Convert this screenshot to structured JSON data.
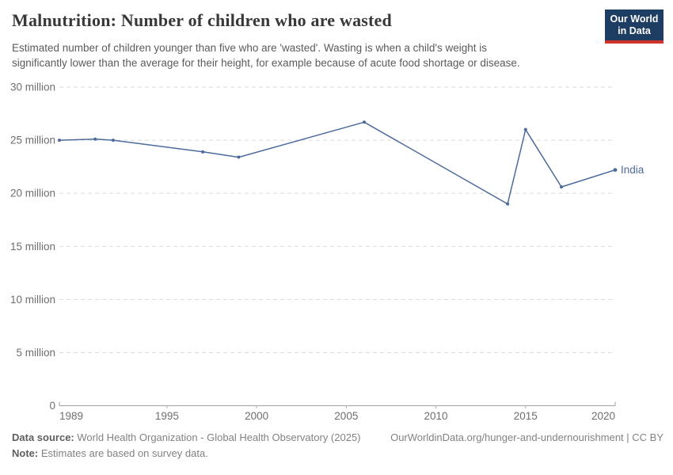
{
  "header": {
    "title": "Malnutrition: Number of children who are wasted",
    "subtitle_line1": "Estimated number of children younger than five who are 'wasted'. Wasting is when a child's weight is",
    "subtitle_line2": "significantly lower than the average for their height, for example because of acute food shortage or disease.",
    "logo_line1": "Our World",
    "logo_line2": "in Data",
    "logo_bg_color": "#1d3d63",
    "logo_accent_color": "#cf342c"
  },
  "chart_data": {
    "type": "line",
    "title": "Malnutrition: Number of children who are wasted",
    "unit": "million",
    "grid": "horizontal-dashed",
    "legend_position": "end-of-line-label",
    "x_range": [
      1989,
      2020
    ],
    "y_range": [
      0,
      30
    ],
    "x_ticks": [
      {
        "v": 1989,
        "label": "1989"
      },
      {
        "v": 1995,
        "label": "1995"
      },
      {
        "v": 2000,
        "label": "2000"
      },
      {
        "v": 2005,
        "label": "2005"
      },
      {
        "v": 2010,
        "label": "2010"
      },
      {
        "v": 2015,
        "label": "2015"
      },
      {
        "v": 2020,
        "label": "2020"
      }
    ],
    "y_ticks": [
      {
        "v": 0,
        "label": "0"
      },
      {
        "v": 5,
        "label": "5 million"
      },
      {
        "v": 10,
        "label": "10 million"
      },
      {
        "v": 15,
        "label": "15 million"
      },
      {
        "v": 20,
        "label": "20 million"
      },
      {
        "v": 25,
        "label": "25 million"
      },
      {
        "v": 30,
        "label": "30 million"
      }
    ],
    "series": [
      {
        "name": "India",
        "color": "#4c6a9c",
        "x": [
          1989,
          1991,
          1992,
          1997,
          1999,
          2006,
          2014,
          2015,
          2017,
          2020
        ],
        "values": [
          25.0,
          25.1,
          25.0,
          23.9,
          23.4,
          26.7,
          19.0,
          26.0,
          20.6,
          22.2
        ]
      }
    ]
  },
  "footer": {
    "source_label": "Data source:",
    "source_text": " World Health Organization - Global Health Observatory (2025)",
    "license_text": "OurWorldinData.org/hunger-and-undernourishment | CC BY",
    "note_label": "Note:",
    "note_text": " Estimates are based on survey data."
  }
}
